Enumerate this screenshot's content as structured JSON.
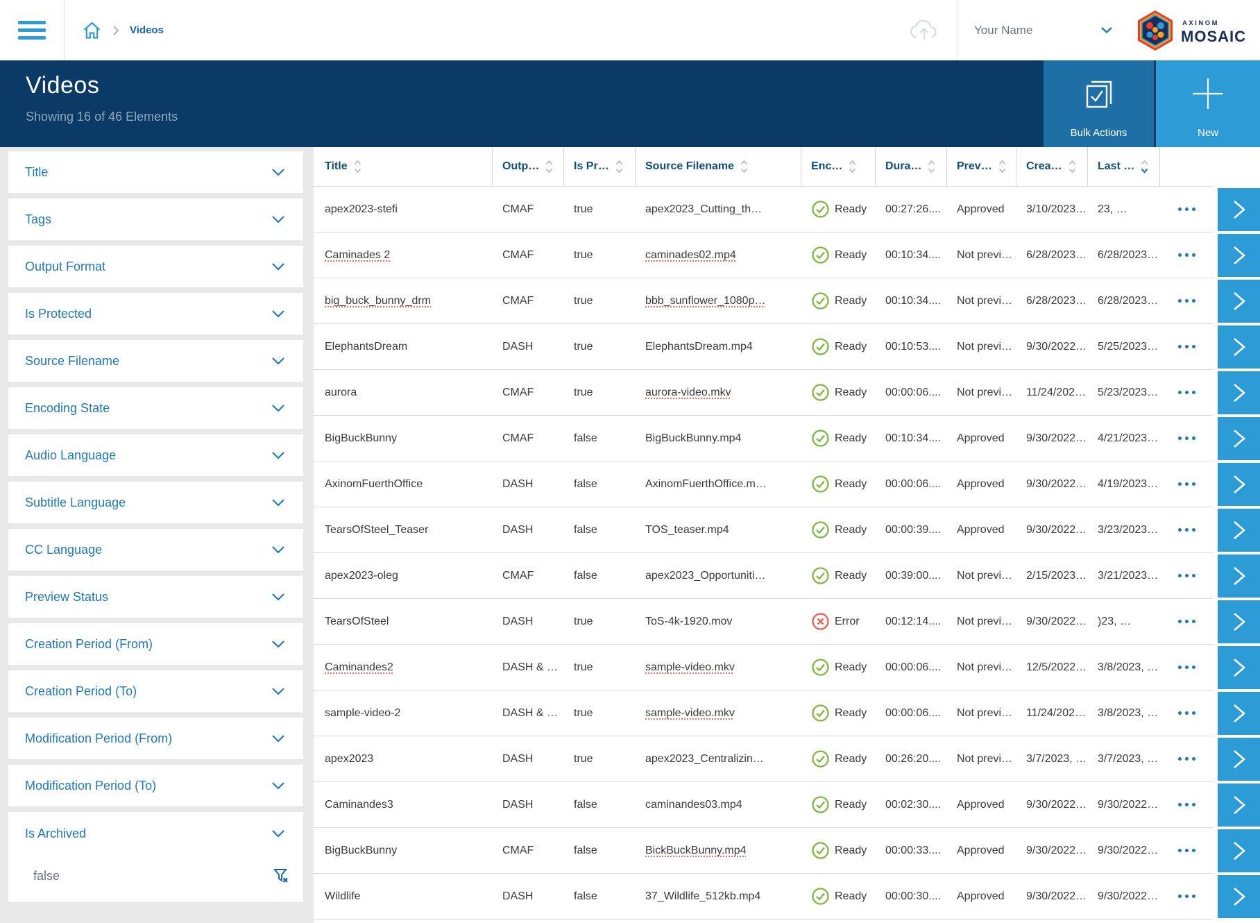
{
  "colors": {
    "accent": "#2d9bd5",
    "primary_dark": "#0a3a66",
    "bulk_blue": "#1e6fa6",
    "link_blue": "#1f78b9",
    "header_text": "#114d7e",
    "success_green": "#7cb93c",
    "error_red": "#e8604c",
    "squiggle_red": "#f06a5a"
  },
  "topbar": {
    "breadcrumb": "Videos",
    "user_name": "Your Name",
    "logo": {
      "brand_top": "AXINOM",
      "brand_bottom": "MOSAIC"
    }
  },
  "header": {
    "title": "Videos",
    "subtitle": "Showing 16 of 46 Elements",
    "bulk_actions_label": "Bulk Actions",
    "new_label": "New"
  },
  "sidebar": {
    "filters": [
      "Title",
      "Tags",
      "Output Format",
      "Is Protected",
      "Source Filename",
      "Encoding State",
      "Audio Language",
      "Subtitle Language",
      "CC Language",
      "Preview Status",
      "Creation Period (From)",
      "Creation Period (To)",
      "Modification Period (From)",
      "Modification Period (To)"
    ],
    "archived": {
      "label": "Is Archived",
      "value": "false"
    }
  },
  "table": {
    "columns": [
      {
        "label": "Title",
        "sort": "none"
      },
      {
        "label": "Outp…",
        "sort": "none"
      },
      {
        "label": "Is Pr…",
        "sort": "none"
      },
      {
        "label": "Source Filename",
        "sort": "none"
      },
      {
        "label": "Enc…",
        "sort": "none"
      },
      {
        "label": "Dura…",
        "sort": "none"
      },
      {
        "label": "Prev…",
        "sort": "none"
      },
      {
        "label": "Crea…",
        "sort": "none"
      },
      {
        "label": "Last …",
        "sort": "desc"
      }
    ],
    "rows": [
      {
        "title": "apex2023-stefi",
        "output": "CMAF",
        "protected": "true",
        "source": "apex2023_Cutting_th…",
        "state": "Ready",
        "duration": "00:27:26....",
        "preview": "Approved",
        "created": "3/10/2023…",
        "modified": "23, …",
        "title_sq": false,
        "source_sq": false
      },
      {
        "title": "Caminades 2",
        "output": "CMAF",
        "protected": "true",
        "source": "caminades02.mp4",
        "state": "Ready",
        "duration": "00:10:34....",
        "preview": "Not previ…",
        "created": "6/28/2023…",
        "modified": "6/28/2023…",
        "title_sq": true,
        "source_sq": true
      },
      {
        "title": "big_buck_bunny_drm",
        "output": "CMAF",
        "protected": "true",
        "source": "bbb_sunflower_1080p…",
        "state": "Ready",
        "duration": "00:10:34....",
        "preview": "Not previ…",
        "created": "6/28/2023…",
        "modified": "6/28/2023…",
        "title_sq": true,
        "source_sq": true
      },
      {
        "title": "ElephantsDream",
        "output": "DASH",
        "protected": "true",
        "source": "ElephantsDream.mp4",
        "state": "Ready",
        "duration": "00:10:53....",
        "preview": "Not previ…",
        "created": "9/30/2022…",
        "modified": "5/25/2023…",
        "title_sq": false,
        "source_sq": false
      },
      {
        "title": "aurora",
        "output": "CMAF",
        "protected": "true",
        "source": "aurora-video.mkv",
        "state": "Ready",
        "duration": "00:00:06....",
        "preview": "Not previ…",
        "created": "11/24/202…",
        "modified": "5/23/2023…",
        "title_sq": false,
        "source_sq": true
      },
      {
        "title": "BigBuckBunny",
        "output": "CMAF",
        "protected": "false",
        "source": "BigBuckBunny.mp4",
        "state": "Ready",
        "duration": "00:10:34....",
        "preview": "Approved",
        "created": "9/30/2022…",
        "modified": "4/21/2023…",
        "title_sq": false,
        "source_sq": false
      },
      {
        "title": "AxinomFuerthOffice",
        "output": "DASH",
        "protected": "false",
        "source": "AxinomFuerthOffice.m…",
        "state": "Ready",
        "duration": "00:00:06....",
        "preview": "Approved",
        "created": "9/30/2022…",
        "modified": "4/19/2023…",
        "title_sq": false,
        "source_sq": false
      },
      {
        "title": "TearsOfSteel_Teaser",
        "output": "DASH",
        "protected": "false",
        "source": "TOS_teaser.mp4",
        "state": "Ready",
        "duration": "00:00:39....",
        "preview": "Approved",
        "created": "9/30/2022…",
        "modified": "3/23/2023…",
        "title_sq": false,
        "source_sq": false
      },
      {
        "title": "apex2023-oleg",
        "output": "CMAF",
        "protected": "false",
        "source": "apex2023_Opportuniti…",
        "state": "Ready",
        "duration": "00:39:00....",
        "preview": "Not previ…",
        "created": "2/15/2023…",
        "modified": "3/21/2023…",
        "title_sq": false,
        "source_sq": false
      },
      {
        "title": "TearsOfSteel",
        "output": "DASH",
        "protected": "true",
        "source": "ToS-4k-1920.mov",
        "state": "Error",
        "duration": "00:12:14....",
        "preview": "Not previ…",
        "created": "9/30/2022…",
        "modified": ")23, …",
        "title_sq": false,
        "source_sq": false
      },
      {
        "title": "Caminandes2",
        "output": "DASH & …",
        "protected": "true",
        "source": "sample-video.mkv",
        "state": "Ready",
        "duration": "00:00:06....",
        "preview": "Not previ…",
        "created": "12/5/2022…",
        "modified": "3/8/2023, …",
        "title_sq": true,
        "source_sq": true
      },
      {
        "title": "sample-video-2",
        "output": "DASH & …",
        "protected": "true",
        "source": "sample-video.mkv",
        "state": "Ready",
        "duration": "00:00:06....",
        "preview": "Not previ…",
        "created": "11/24/202…",
        "modified": "3/8/2023, …",
        "title_sq": false,
        "source_sq": true
      },
      {
        "title": "apex2023",
        "output": "DASH",
        "protected": "true",
        "source": "apex2023_Centralizin…",
        "state": "Ready",
        "duration": "00:26:20....",
        "preview": "Not previ…",
        "created": "3/7/2023, …",
        "modified": "3/7/2023, …",
        "title_sq": false,
        "source_sq": false
      },
      {
        "title": "Caminandes3",
        "output": "DASH",
        "protected": "false",
        "source": "caminandes03.mp4",
        "state": "Ready",
        "duration": "00:02:30....",
        "preview": "Approved",
        "created": "9/30/2022…",
        "modified": "9/30/2022…",
        "title_sq": false,
        "source_sq": false
      },
      {
        "title": "BigBuckBunny",
        "output": "CMAF",
        "protected": "false",
        "source": "BickBuckBunny.mp4",
        "state": "Ready",
        "duration": "00:00:33....",
        "preview": "Approved",
        "created": "9/30/2022…",
        "modified": "9/30/2022…",
        "title_sq": false,
        "source_sq": true
      },
      {
        "title": "Wildlife",
        "output": "DASH",
        "protected": "false",
        "source": "37_Wildlife_512kb.mp4",
        "state": "Ready",
        "duration": "00:00:30....",
        "preview": "Approved",
        "created": "9/30/2022…",
        "modified": "9/30/2022…",
        "title_sq": false,
        "source_sq": false
      }
    ]
  }
}
